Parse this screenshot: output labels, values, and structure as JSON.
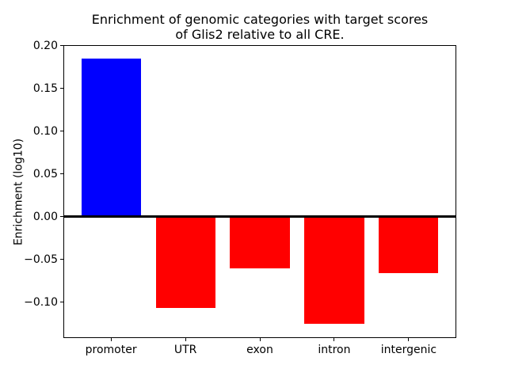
{
  "chart_data": {
    "type": "bar",
    "title": "Enrichment of genomic categories with target scores\nof Glis2 relative to all CRE.",
    "title_line1": "Enrichment of genomic categories with target scores",
    "title_line2": "of Glis2 relative to all CRE.",
    "ylabel": "Enrichment (log10)",
    "xlabel": "",
    "categories": [
      "promoter",
      "UTR",
      "exon",
      "intron",
      "intergenic"
    ],
    "values": [
      0.185,
      -0.107,
      -0.061,
      -0.125,
      -0.066
    ],
    "bar_colors": [
      "#0000ff",
      "#ff0000",
      "#ff0000",
      "#ff0000",
      "#ff0000"
    ],
    "positive_color": "#0000ff",
    "negative_color": "#ff0000",
    "bar_width": 0.8,
    "xlim": [
      -0.64,
      4.64
    ],
    "ylim": [
      -0.142,
      0.2005
    ],
    "yticks": [
      {
        "value": 0.2,
        "label": "0.20"
      },
      {
        "value": 0.15,
        "label": "0.15"
      },
      {
        "value": 0.1,
        "label": "0.10"
      },
      {
        "value": 0.05,
        "label": "0.05"
      },
      {
        "value": 0.0,
        "label": "0.00"
      },
      {
        "value": -0.05,
        "label": "−0.05"
      },
      {
        "value": -0.1,
        "label": "−0.10"
      }
    ],
    "zero_line": true,
    "grid": false,
    "legend": null,
    "axis_color": "#000000"
  }
}
